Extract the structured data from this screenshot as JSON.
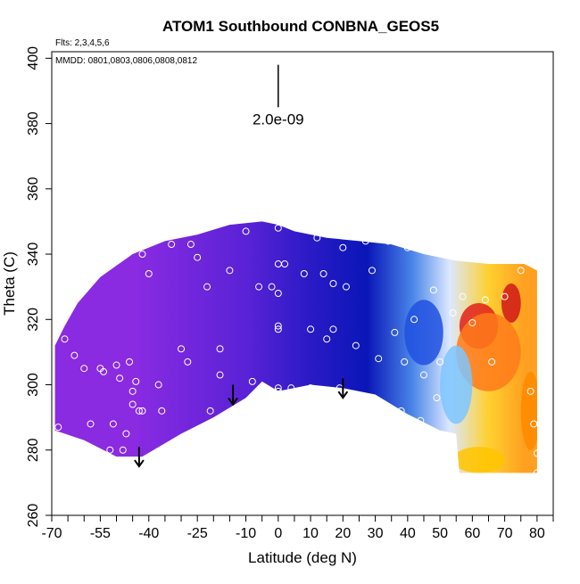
{
  "chart_data": {
    "type": "heatmap",
    "title": "ATOM1 Southbound CONBNA_GEOS5",
    "xlabel": "Latitude (deg N)",
    "ylabel": "Theta (C)",
    "xlim": [
      -70,
      85
    ],
    "ylim": [
      260,
      402
    ],
    "x_ticks": [
      -70,
      -65,
      -60,
      -55,
      -50,
      -45,
      -40,
      -35,
      -30,
      -25,
      -20,
      -15,
      -10,
      -5,
      0,
      5,
      10,
      15,
      20,
      25,
      30,
      35,
      40,
      45,
      50,
      55,
      60,
      65,
      70,
      75,
      80,
      85
    ],
    "x_tick_labels": [
      "-70",
      "-55",
      "-40",
      "-25",
      "-10",
      "0",
      "10",
      "20",
      "30",
      "40",
      "50",
      "60",
      "70",
      "80"
    ],
    "x_labeled_ticks": [
      -70,
      -55,
      -40,
      -25,
      -10,
      0,
      10,
      20,
      30,
      40,
      50,
      60,
      70,
      80
    ],
    "y_ticks": [
      260,
      280,
      300,
      320,
      340,
      360,
      380,
      400
    ],
    "y_tick_labels": [
      "260",
      "280",
      "300",
      "320",
      "340",
      "360",
      "380",
      "400"
    ],
    "annotations": {
      "flights": "Flts: 2,3,4,5,6",
      "dates": "MMDD: 0801,0803,0806,0808,0812",
      "scale_label": "2.0e-09"
    },
    "scale_bar": {
      "x": 0,
      "y_top": 398,
      "y_bottom": 385
    },
    "outline": [
      [
        -69,
        312
      ],
      [
        -69,
        286
      ],
      [
        -60,
        283
      ],
      [
        -50,
        278
      ],
      [
        -42,
        278
      ],
      [
        -30,
        285
      ],
      [
        -20,
        290
      ],
      [
        -10,
        296
      ],
      [
        -5,
        301
      ],
      [
        0,
        298
      ],
      [
        10,
        300
      ],
      [
        20,
        299
      ],
      [
        30,
        297
      ],
      [
        40,
        291
      ],
      [
        50,
        286
      ],
      [
        55,
        285
      ],
      [
        56,
        273
      ],
      [
        80,
        273
      ],
      [
        80,
        290
      ],
      [
        80,
        300
      ],
      [
        80,
        310
      ],
      [
        80,
        335
      ],
      [
        76,
        337
      ],
      [
        65,
        337
      ],
      [
        55,
        338
      ],
      [
        45,
        340
      ],
      [
        35,
        343
      ],
      [
        25,
        344
      ],
      [
        15,
        345
      ],
      [
        5,
        347
      ],
      [
        0,
        349
      ],
      [
        -5,
        350
      ],
      [
        -15,
        349
      ],
      [
        -25,
        346
      ],
      [
        -35,
        344
      ],
      [
        -45,
        340
      ],
      [
        -55,
        333
      ],
      [
        -62,
        325
      ],
      [
        -66,
        318
      ]
    ],
    "color_field": [
      {
        "from": -69,
        "to": -20,
        "color": "#8a2be2"
      },
      {
        "from": -20,
        "to": 0,
        "color": "#5a22d6"
      },
      {
        "from": 0,
        "to": 20,
        "color": "#2a1ac6"
      },
      {
        "from": 20,
        "to": 35,
        "color": "#0a16b8"
      },
      {
        "from": 35,
        "to": 48,
        "color": "#4a86e8"
      },
      {
        "from": 48,
        "to": 58,
        "color": "#dce8ff"
      },
      {
        "from": 58,
        "to": 72,
        "color": "#ffd030"
      },
      {
        "from": 72,
        "to": 80,
        "color": "#ffa020"
      }
    ],
    "hotspots": [
      {
        "x": 62,
        "y": 318,
        "rx": 6,
        "ry": 7,
        "color": "#e0201a"
      },
      {
        "x": 72,
        "y": 325,
        "rx": 3,
        "ry": 6,
        "color": "#d01818"
      },
      {
        "x": 65,
        "y": 310,
        "rx": 10,
        "ry": 12,
        "color": "#ff7a1a"
      },
      {
        "x": 78,
        "y": 292,
        "rx": 3,
        "ry": 12,
        "color": "#ff8a00"
      },
      {
        "x": 62,
        "y": 277,
        "rx": 8,
        "ry": 4,
        "color": "#ffc400"
      },
      {
        "x": 55,
        "y": 300,
        "rx": 5,
        "ry": 12,
        "color": "#7cc6ff"
      },
      {
        "x": 45,
        "y": 316,
        "rx": 6,
        "ry": 10,
        "color": "#2050e0"
      }
    ],
    "points": [
      [
        -68,
        287
      ],
      [
        -66,
        314
      ],
      [
        -63,
        309
      ],
      [
        -60,
        305
      ],
      [
        -58,
        288
      ],
      [
        -55,
        305
      ],
      [
        -54,
        304
      ],
      [
        -52,
        280
      ],
      [
        -51,
        288
      ],
      [
        -50,
        306
      ],
      [
        -49,
        302
      ],
      [
        -48,
        280
      ],
      [
        -47,
        285
      ],
      [
        -46,
        307
      ],
      [
        -45,
        294
      ],
      [
        -45,
        298
      ],
      [
        -44,
        301
      ],
      [
        -43,
        292
      ],
      [
        -42,
        340
      ],
      [
        -42,
        292
      ],
      [
        -40,
        334
      ],
      [
        -37,
        300
      ],
      [
        -36,
        292
      ],
      [
        -33,
        343
      ],
      [
        -30,
        311
      ],
      [
        -28,
        307
      ],
      [
        -27,
        343
      ],
      [
        -25,
        339
      ],
      [
        -22,
        330
      ],
      [
        -21,
        292
      ],
      [
        -18,
        303
      ],
      [
        -18,
        311
      ],
      [
        -15,
        335
      ],
      [
        -10,
        347
      ],
      [
        -8,
        301
      ],
      [
        -6,
        330
      ],
      [
        -2,
        330
      ],
      [
        0,
        328
      ],
      [
        0,
        337
      ],
      [
        0,
        318
      ],
      [
        0,
        317
      ],
      [
        0,
        299
      ],
      [
        0,
        298
      ],
      [
        0,
        348
      ],
      [
        2,
        337
      ],
      [
        4,
        299
      ],
      [
        8,
        334
      ],
      [
        10,
        299
      ],
      [
        10,
        317
      ],
      [
        12,
        345
      ],
      [
        14,
        334
      ],
      [
        15,
        314
      ],
      [
        17,
        331
      ],
      [
        17,
        317
      ],
      [
        19,
        299
      ],
      [
        20,
        342
      ],
      [
        21,
        330
      ],
      [
        24,
        312
      ],
      [
        27,
        344
      ],
      [
        29,
        335
      ],
      [
        31,
        308
      ],
      [
        34,
        344
      ],
      [
        36,
        316
      ],
      [
        38,
        292
      ],
      [
        39,
        307
      ],
      [
        40,
        342
      ],
      [
        42,
        320
      ],
      [
        44,
        289
      ],
      [
        45,
        303
      ],
      [
        48,
        329
      ],
      [
        49,
        296
      ],
      [
        50,
        307
      ],
      [
        54,
        322
      ],
      [
        57,
        327
      ],
      [
        60,
        319
      ],
      [
        64,
        326
      ],
      [
        66,
        307
      ],
      [
        70,
        327
      ],
      [
        75,
        335
      ],
      [
        78,
        298
      ],
      [
        79,
        288
      ],
      [
        80,
        279
      ],
      [
        80,
        273
      ]
    ],
    "arrows": [
      {
        "x": -43,
        "y_start": 281,
        "y_end": 275
      },
      {
        "x": -14,
        "y_start": 300,
        "y_end": 294
      },
      {
        "x": 20,
        "y_start": 302,
        "y_end": 296
      }
    ],
    "grid": false,
    "legend": "none"
  }
}
